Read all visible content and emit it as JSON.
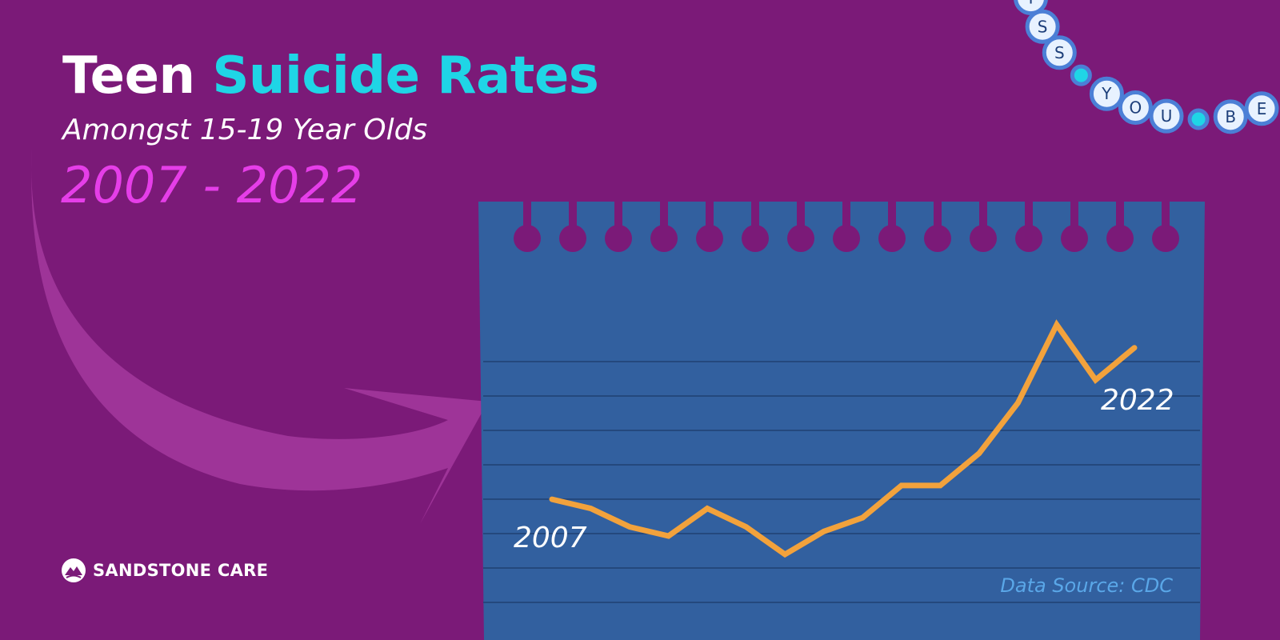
{
  "title": {
    "plain": "Teen",
    "accent": "Suicide Rates"
  },
  "subtitle": "Amongst 15-19 Year Olds",
  "date_range": "2007 - 2022",
  "brand": {
    "name": "SANDSTONE CARE"
  },
  "bracelet_text": "MISS YOU BE",
  "source": "Data Source: CDC",
  "colors": {
    "background": "#7b1a78",
    "accent": "#1fd5e6",
    "date_range": "#e53ee8",
    "paper": "#32609f",
    "line": "#f2a23c",
    "source": "#5aa7e8"
  },
  "chart_data": {
    "type": "line",
    "x": [
      2007,
      2008,
      2009,
      2010,
      2011,
      2012,
      2013,
      2014,
      2015,
      2016,
      2017,
      2018,
      2019,
      2020,
      2021,
      2022
    ],
    "y": [
      20,
      18,
      14,
      12,
      18,
      14,
      8,
      13,
      16,
      23,
      23,
      30,
      41,
      58,
      46,
      53
    ],
    "start_label": "2007",
    "end_label": "2022"
  }
}
